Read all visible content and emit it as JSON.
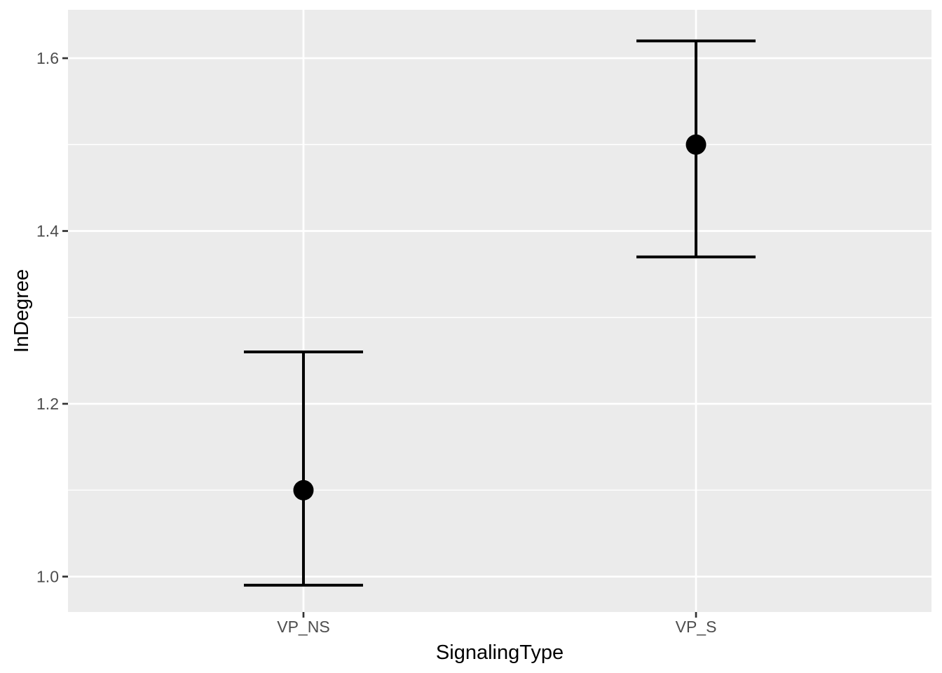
{
  "chart_data": {
    "type": "pointrange",
    "title": "",
    "xlabel": "SignalingType",
    "ylabel": "InDegree",
    "categories": [
      "VP_NS",
      "VP_S"
    ],
    "x_tick_labels": [
      "VP_NS",
      "VP_S"
    ],
    "points": [
      {
        "category": "VP_NS",
        "mean": 1.1,
        "lower": 0.99,
        "upper": 1.26
      },
      {
        "category": "VP_S",
        "mean": 1.5,
        "lower": 1.37,
        "upper": 1.62
      }
    ],
    "y_major_ticks": [
      1.0,
      1.2,
      1.4,
      1.6
    ],
    "y_tick_labels": [
      "1.0",
      "1.2",
      "1.4",
      "1.6"
    ],
    "y_minor_ticks": [
      1.1,
      1.3,
      1.5
    ],
    "ylim": [
      0.959,
      1.656
    ],
    "x_positions": [
      0.2727,
      0.7273
    ],
    "grid": "on",
    "legend": "none",
    "colors": {
      "page_background": "#FFFFFF",
      "panel_background": "#EBEBEB",
      "gridline": "#FFFFFF",
      "errorbar": "#000000",
      "point": "#000000",
      "axis_tick": "#333333",
      "tick_label": "#4D4D4D",
      "axis_title": "#000000"
    }
  }
}
